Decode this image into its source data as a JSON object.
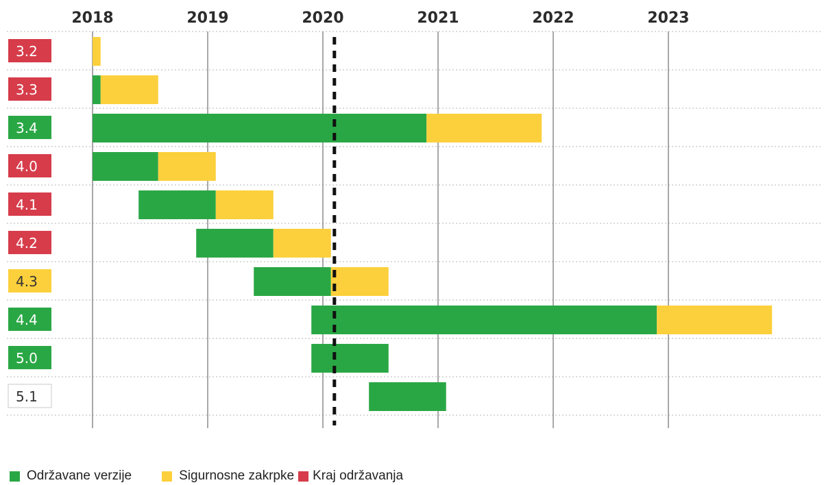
{
  "chart_data": {
    "type": "bar",
    "orientation": "horizontal-timeline",
    "x_axis": {
      "ticks": [
        2018,
        2019,
        2020,
        2021,
        2022,
        2023
      ],
      "range": [
        2017.15,
        2024.4
      ]
    },
    "current_date_marker": 2020.1,
    "colors": {
      "maintained": "#2aa745",
      "security": "#fcd03c",
      "end_of_life": "#d63c4a",
      "future": "#ffffff"
    },
    "legend": [
      {
        "label": "Održavane verzije",
        "status": "maintained"
      },
      {
        "label": "Sigurnosne zakrpke",
        "status": "security"
      },
      {
        "label": "Kraj održavanja",
        "status": "end_of_life"
      }
    ],
    "versions": [
      {
        "version": "3.2",
        "status": "end_of_life",
        "maintained": null,
        "security": [
          2018.0,
          2018.07
        ]
      },
      {
        "version": "3.3",
        "status": "end_of_life",
        "maintained": [
          2018.0,
          2018.07
        ],
        "security": [
          2018.07,
          2018.57
        ]
      },
      {
        "version": "3.4",
        "status": "maintained",
        "maintained": [
          2018.0,
          2020.9
        ],
        "security": [
          2020.9,
          2021.9
        ]
      },
      {
        "version": "4.0",
        "status": "end_of_life",
        "maintained": [
          2018.0,
          2018.57
        ],
        "security": [
          2018.57,
          2019.07
        ]
      },
      {
        "version": "4.1",
        "status": "end_of_life",
        "maintained": [
          2018.4,
          2019.07
        ],
        "security": [
          2019.07,
          2019.57
        ]
      },
      {
        "version": "4.2",
        "status": "end_of_life",
        "maintained": [
          2018.9,
          2019.57
        ],
        "security": [
          2019.57,
          2020.07
        ]
      },
      {
        "version": "4.3",
        "status": "security",
        "maintained": [
          2019.4,
          2020.07
        ],
        "security": [
          2020.07,
          2020.57
        ]
      },
      {
        "version": "4.4",
        "status": "maintained",
        "maintained": [
          2019.9,
          2022.9
        ],
        "security": [
          2022.9,
          2023.9
        ]
      },
      {
        "version": "5.0",
        "status": "maintained",
        "maintained": [
          2019.9,
          2020.57
        ],
        "security": null
      },
      {
        "version": "5.1",
        "status": "future",
        "maintained": [
          2020.4,
          2021.07
        ],
        "security": null
      }
    ]
  }
}
